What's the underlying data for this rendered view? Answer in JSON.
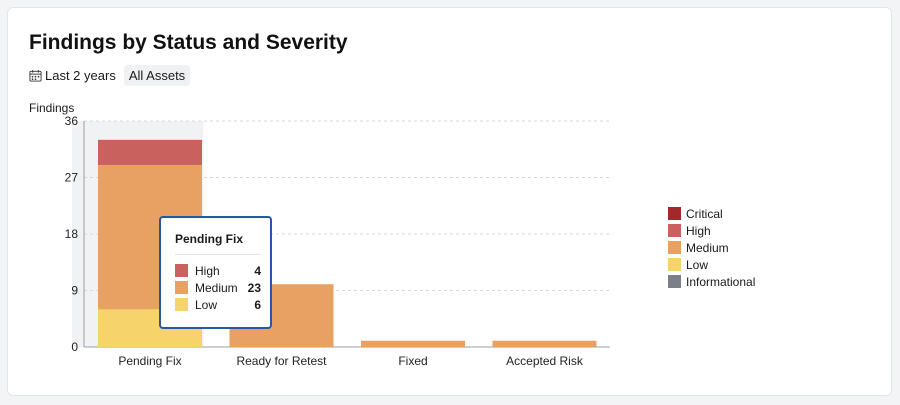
{
  "card": {
    "title": "Findings by Status and Severity",
    "filters": {
      "date_range": "Last 2 years",
      "assets": "All Assets"
    },
    "icons": {
      "date": "calendar-icon"
    }
  },
  "chart_data": {
    "type": "bar",
    "stacked": true,
    "title": "Findings by Status and Severity",
    "xlabel": "",
    "ylabel": "Findings",
    "ylim": [
      0,
      36
    ],
    "yticks": [
      0,
      9,
      18,
      27,
      36
    ],
    "grid": true,
    "legend_position": "right",
    "categories": [
      "Pending Fix",
      "Ready for Retest",
      "Fixed",
      "Accepted Risk"
    ],
    "series": [
      {
        "name": "Critical",
        "color": "#a3282a",
        "values": [
          0,
          0,
          0,
          0
        ]
      },
      {
        "name": "High",
        "color": "#c9615e",
        "values": [
          4,
          0,
          0,
          0
        ]
      },
      {
        "name": "Medium",
        "color": "#e8a063",
        "values": [
          23,
          10,
          1,
          1
        ]
      },
      {
        "name": "Low",
        "color": "#f6d36b",
        "values": [
          6,
          0,
          0,
          0
        ]
      },
      {
        "name": "Informational",
        "color": "#7b7f88",
        "values": [
          0,
          0,
          0,
          0
        ]
      }
    ],
    "highlighted_category": "Pending Fix"
  },
  "tooltip": {
    "title": "Pending Fix",
    "rows": [
      {
        "label": "High",
        "value": "4",
        "color": "#c9615e"
      },
      {
        "label": "Medium",
        "value": "23",
        "color": "#e8a063"
      },
      {
        "label": "Low",
        "value": "6",
        "color": "#f6d36b"
      }
    ]
  }
}
